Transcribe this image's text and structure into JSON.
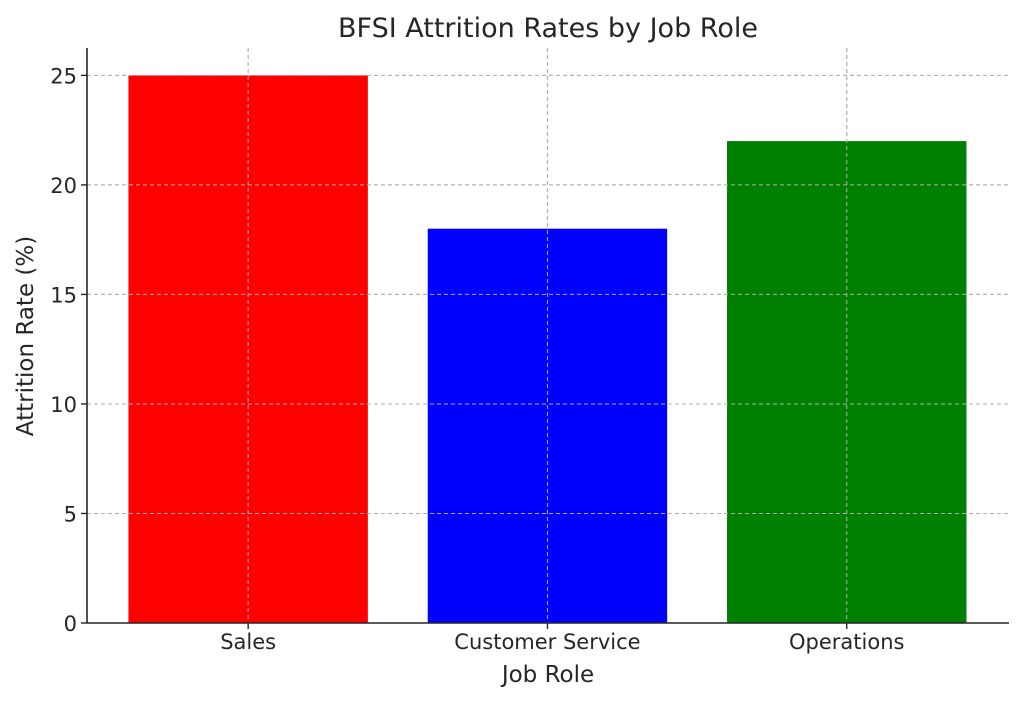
{
  "chart_data": {
    "type": "bar",
    "title": "BFSI Attrition Rates by Job Role",
    "xlabel": "Job Role",
    "ylabel": "Attrition Rate (%)",
    "categories": [
      "Sales",
      "Customer Service",
      "Operations"
    ],
    "values": [
      25,
      18,
      22
    ],
    "colors": [
      "#ff0000",
      "#0000ff",
      "#008000"
    ],
    "ylim": [
      0,
      26.25
    ],
    "yticks": [
      0,
      5,
      10,
      15,
      20,
      25
    ],
    "grid": true,
    "legend": "none"
  }
}
